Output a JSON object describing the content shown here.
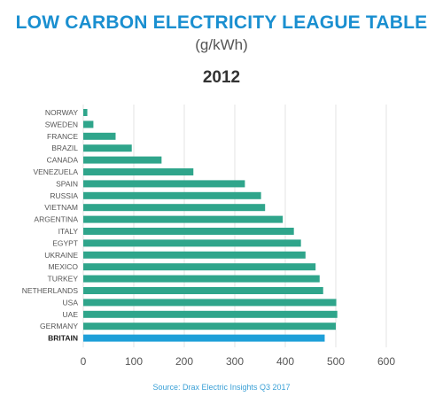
{
  "header": {
    "title": "LOW CARBON ELECTRICITY LEAGUE TABLE",
    "subtitle": "(g/kWh)",
    "year": "2012"
  },
  "footer": {
    "source": "Source: Drax Electric Insights Q3 2017"
  },
  "colors": {
    "title": "#1a8fd0",
    "bar": "#2fa58b",
    "highlight_bar": "#1e9fd8",
    "grid": "#e3e3e3",
    "axis_text": "#555555",
    "label_text": "#555555",
    "highlight_label": "#222222",
    "source": "#3aa0d6"
  },
  "chart_data": {
    "type": "bar",
    "orientation": "horizontal",
    "categories": [
      "NORWAY",
      "SWEDEN",
      "FRANCE",
      "BRAZIL",
      "CANADA",
      "VENEZUELA",
      "SPAIN",
      "RUSSIA",
      "VIETNAM",
      "ARGENTINA",
      "ITALY",
      "EGYPT",
      "UKRAINE",
      "MEXICO",
      "TURKEY",
      "NETHERLANDS",
      "USA",
      "UAE",
      "GERMANY",
      "BRITAIN"
    ],
    "values": [
      8,
      20,
      64,
      96,
      155,
      218,
      320,
      352,
      360,
      395,
      417,
      431,
      440,
      460,
      468,
      475,
      501,
      503,
      500,
      478
    ],
    "highlight": "BRITAIN",
    "xlim": [
      0,
      600
    ],
    "xticks": [
      "0",
      "100",
      "200",
      "300",
      "400",
      "500",
      "600"
    ],
    "grid": true
  }
}
